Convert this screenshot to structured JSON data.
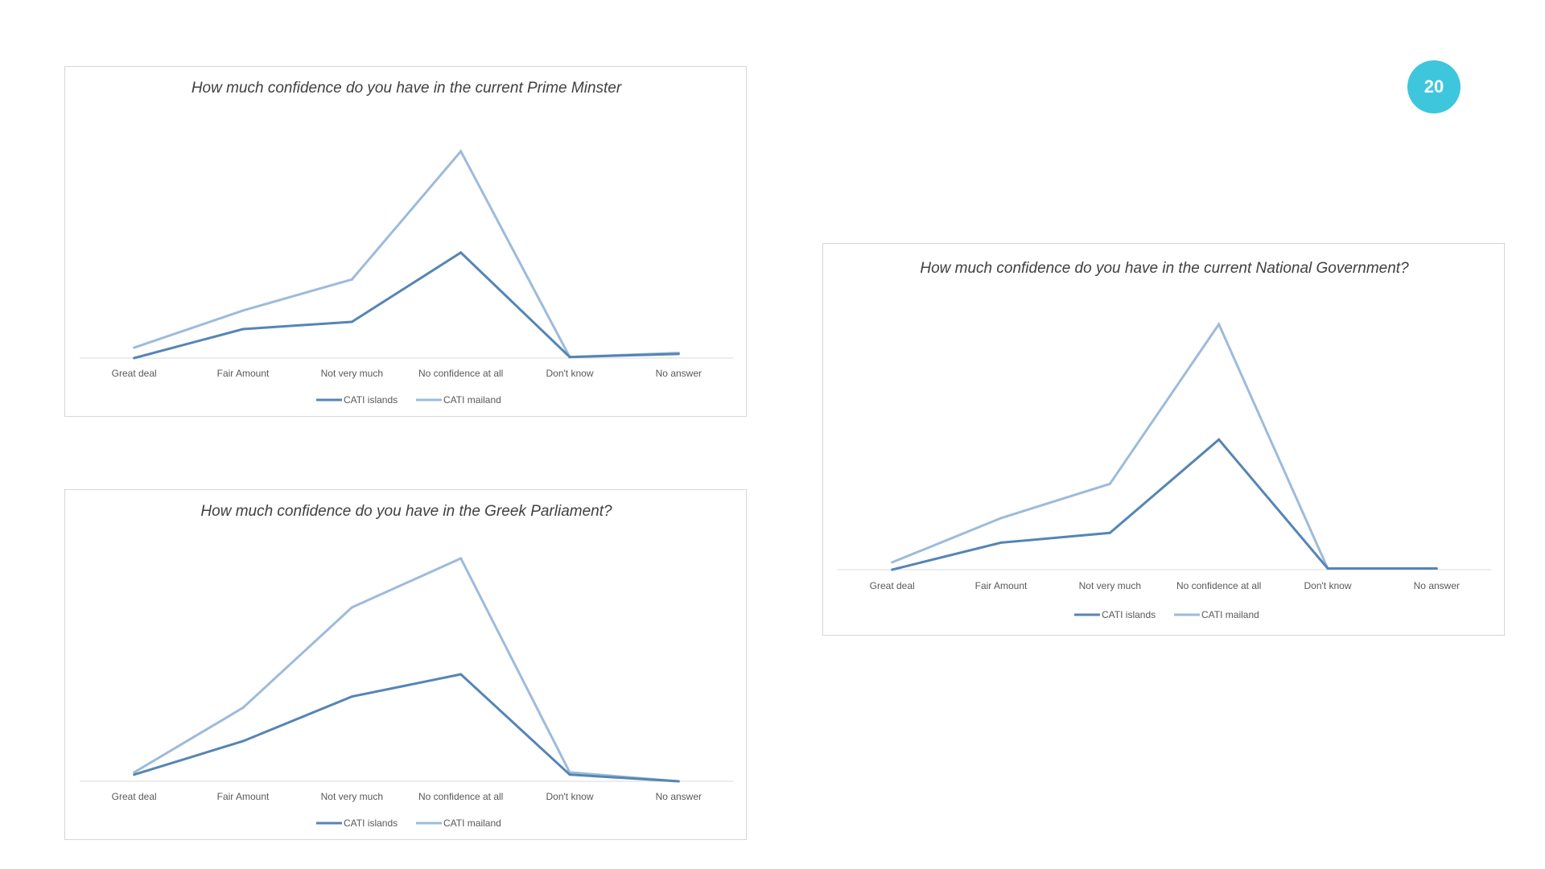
{
  "page": {
    "number": "20"
  },
  "colors": {
    "islands": "#5585b5",
    "mainland": "#9dbbdb",
    "badge": "#3ec6dc",
    "axis": "#d9d9d9"
  },
  "chart_data": [
    {
      "type": "line",
      "title": "How much confidence do you have in the current Prime Minster",
      "categories": [
        "Great deal",
        "Fair Amount",
        "Not very much",
        "No confidence at all",
        "Don't know",
        "No answer"
      ],
      "series": [
        {
          "name": "CATI islands",
          "values": [
            0,
            14,
            17.5,
            51,
            0.5,
            2
          ]
        },
        {
          "name": "CATI mailand",
          "values": [
            5,
            23,
            38,
            100,
            0.5,
            2.5
          ]
        }
      ],
      "ylim": [
        0,
        100
      ],
      "grid": false,
      "legend": "bottom"
    },
    {
      "type": "line",
      "title": "How much confidence do you have in the current National Government?",
      "categories": [
        "Great deal",
        "Fair Amount",
        "Not very much",
        "No confidence at all",
        "Don't know",
        "No answer"
      ],
      "series": [
        {
          "name": "CATI islands",
          "values": [
            0,
            11,
            15,
            53,
            0.5,
            0.5
          ]
        },
        {
          "name": "CATI mailand",
          "values": [
            3,
            21,
            35,
            100,
            0.5,
            0.5
          ]
        }
      ],
      "ylim": [
        0,
        100
      ],
      "grid": false,
      "legend": "bottom"
    },
    {
      "type": "line",
      "title": "How much confidence do you have in the Greek Parliament?",
      "categories": [
        "Great deal",
        "Fair Amount",
        "Not very much",
        "No confidence at all",
        "Don't know",
        "No answer"
      ],
      "series": [
        {
          "name": "CATI islands",
          "values": [
            3,
            18,
            38,
            48,
            3,
            0
          ]
        },
        {
          "name": "CATI mailand",
          "values": [
            4,
            33,
            78,
            100,
            4,
            0
          ]
        }
      ],
      "ylim": [
        0,
        100
      ],
      "grid": false,
      "legend": "bottom"
    }
  ]
}
